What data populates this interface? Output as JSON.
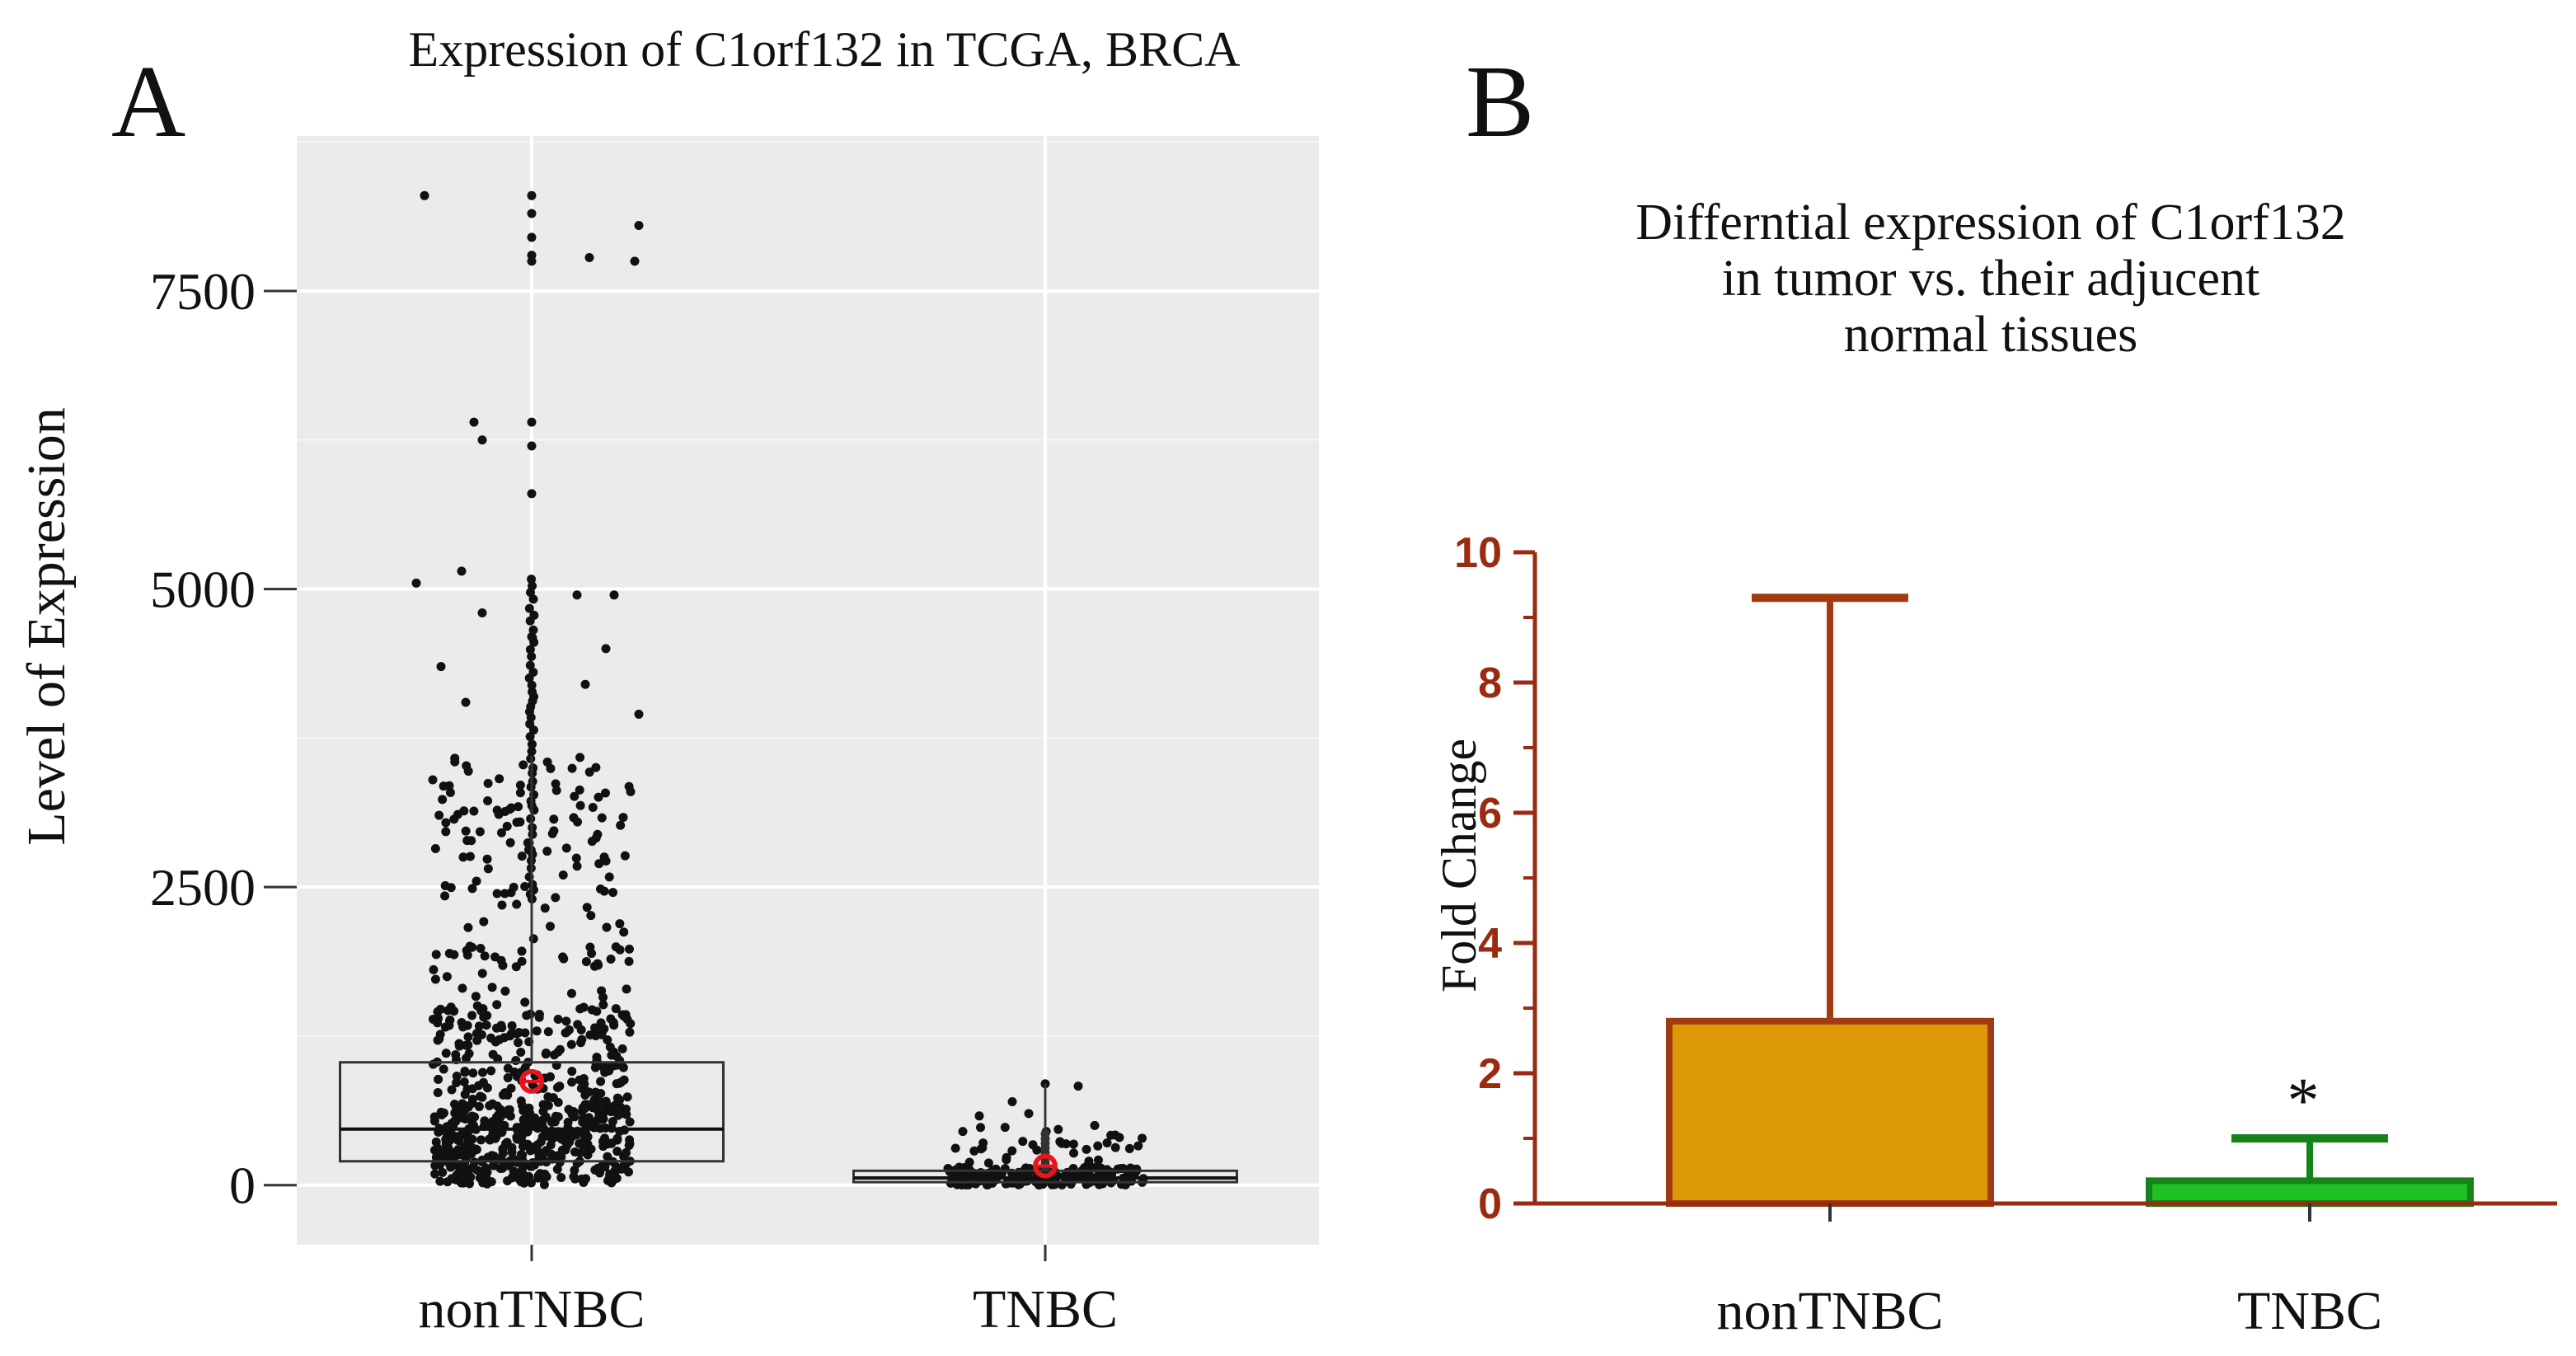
{
  "panel_a": {
    "letter": "A",
    "chart_data": {
      "type": "box",
      "title": "Expression of C1orf132 in TCGA, BRCA",
      "xlabel": "",
      "ylabel": "Level of Expression",
      "categories": [
        "nonTNBC",
        "TNBC"
      ],
      "ylim": [
        -500,
        8800
      ],
      "yticks": [
        0,
        2500,
        5000,
        7500
      ],
      "grid": true,
      "boxes": [
        {
          "name": "nonTNBC",
          "q1": 200,
          "median": 470,
          "q3": 1030,
          "mean": 870,
          "max_outlier": 8300
        },
        {
          "name": "TNBC",
          "q1": 25,
          "median": 60,
          "q3": 120,
          "mean": 160,
          "max_outlier": 850
        }
      ],
      "mean_marker_color": "#e8141e",
      "point_color": "#111111"
    }
  },
  "panel_b": {
    "letter": "B",
    "chart_data": {
      "type": "bar",
      "title": "Differntial expression of C1orf132 in tumor vs. their adjucent normal tissues",
      "title_lines": [
        "Differntial expression of C1orf132",
        "in tumor vs. their adjucent",
        "normal tissues"
      ],
      "xlabel": "",
      "ylabel": "Fold Change",
      "categories": [
        "nonTNBC",
        "TNBC"
      ],
      "values": [
        2.8,
        0.35
      ],
      "error_upper": [
        9.3,
        1.0
      ],
      "ylim": [
        0,
        10
      ],
      "yticks": [
        0,
        2,
        4,
        6,
        8,
        10
      ],
      "annotations": [
        {
          "category": "TNBC",
          "text": "*"
        }
      ],
      "colors": {
        "axis": "#9a2a10",
        "nonTNBC_fill": "#de9a06",
        "nonTNBC_edge": "#a33b12",
        "TNBC_fill": "#1ec022",
        "TNBC_edge": "#16821a"
      }
    }
  }
}
